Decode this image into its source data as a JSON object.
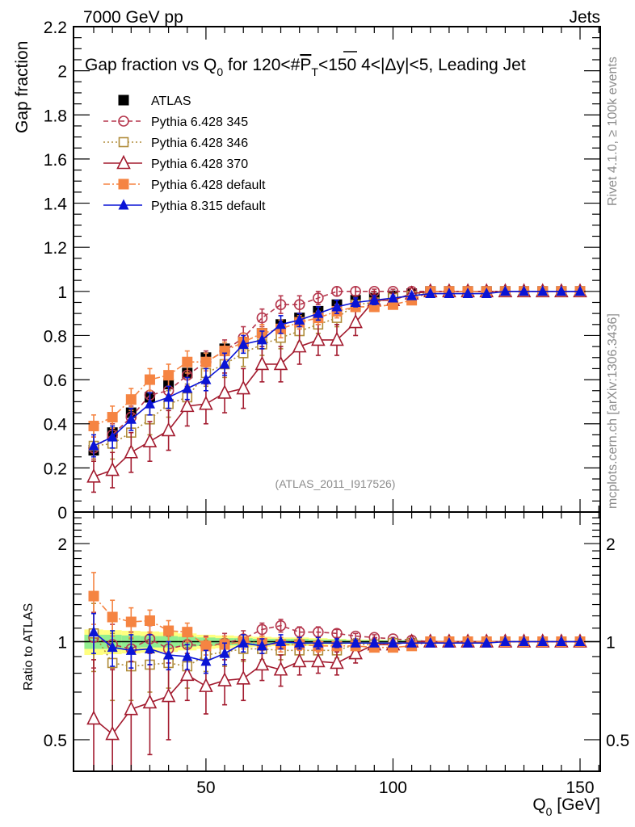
{
  "header": {
    "left_label": "7000 GeV pp",
    "right_label": "Jets",
    "side_label_top": "Rivet 4.1.0, ≥ 100k events",
    "side_label_bottom": "mcplots.cern.ch [arXiv:1306.3436]",
    "analysis_id": "(ATLAS_2011_I917526)"
  },
  "chart_data": [
    {
      "type": "line",
      "panel": "main",
      "title_parts": {
        "pre": "Gap fraction vs Q",
        "sub0": "0",
        "mid": " for 120<#",
        "pbar": "P",
        "subT": "T",
        "post": "<150  4<|Δy|<5, Leading Jet"
      },
      "xlabel": "Q",
      "xlabel_sub": "0",
      "xlabel_unit": " [GeV]",
      "ylabel": "Gap fraction",
      "xlim": [
        14.6,
        155.4
      ],
      "ylim": [
        0,
        2.2
      ],
      "yticks": [
        0,
        0.2,
        0.4,
        0.6,
        0.8,
        1,
        1.2,
        1.4,
        1.6,
        1.8,
        2,
        2.2
      ],
      "ytick_labels": [
        "0",
        "0.2",
        "0.4",
        "0.6",
        "0.8",
        "1",
        "1.2",
        "1.4",
        "1.6",
        "1.8",
        "2",
        "2.2"
      ],
      "xticks": [
        50,
        100,
        150
      ],
      "xtick_labels": [
        "50",
        "100",
        "150"
      ],
      "legend_position": "top-left",
      "x": [
        20,
        25,
        30,
        35,
        40,
        45,
        50,
        55,
        60,
        65,
        70,
        75,
        80,
        85,
        90,
        95,
        100,
        105,
        110,
        115,
        120,
        125,
        130,
        135,
        140,
        145,
        150
      ],
      "series": [
        {
          "name": "ATLAS",
          "color": "#000000",
          "marker": "filled-square",
          "line": "none",
          "values": [
            0.28,
            0.36,
            0.45,
            0.52,
            0.58,
            0.63,
            0.7,
            0.74,
            0.77,
            0.81,
            0.85,
            0.88,
            0.91,
            0.94,
            0.96,
            0.97,
            0.98,
            0.99,
            1,
            1,
            1,
            1,
            1,
            1,
            1,
            1,
            1
          ],
          "errors": [
            0.02,
            0.02,
            0.02,
            0.02,
            0.02,
            0.02,
            0.02,
            0.02,
            0.02,
            0.02,
            0.02,
            0.02,
            0.02,
            0.01,
            0.01,
            0.01,
            0.01,
            0.01,
            0,
            0,
            0,
            0,
            0,
            0,
            0,
            0,
            0
          ]
        },
        {
          "name": "Pythia 6.428 345",
          "color": "#b5374d",
          "marker": "open-circle",
          "line": "dashed",
          "values": [
            0.29,
            0.35,
            0.43,
            0.53,
            0.55,
            0.62,
            0.68,
            0.73,
            0.79,
            0.88,
            0.94,
            0.94,
            0.97,
            1.0,
            1.0,
            1.0,
            1.0,
            1.0,
            1,
            1,
            1,
            1,
            1,
            1,
            1,
            1,
            1
          ],
          "errors": [
            0.05,
            0.05,
            0.05,
            0.05,
            0.05,
            0.05,
            0.05,
            0.05,
            0.05,
            0.04,
            0.04,
            0.04,
            0.03,
            0.02,
            0.02,
            0.01,
            0.01,
            0.01,
            0,
            0,
            0,
            0,
            0,
            0,
            0,
            0,
            0
          ]
        },
        {
          "name": "Pythia 6.428 346",
          "color": "#b08c3a",
          "marker": "open-square",
          "line": "dotted",
          "values": [
            0.3,
            0.31,
            0.36,
            0.42,
            0.49,
            0.52,
            0.63,
            0.67,
            0.72,
            0.76,
            0.79,
            0.82,
            0.85,
            0.88,
            0.94,
            0.95,
            0.97,
            0.98,
            1,
            1,
            1,
            1,
            1,
            1,
            1,
            1,
            1
          ],
          "errors": [
            0.07,
            0.07,
            0.07,
            0.07,
            0.06,
            0.06,
            0.06,
            0.06,
            0.06,
            0.05,
            0.05,
            0.05,
            0.04,
            0.04,
            0.03,
            0.02,
            0.02,
            0.01,
            0,
            0,
            0,
            0,
            0,
            0,
            0,
            0,
            0
          ]
        },
        {
          "name": "Pythia 6.428 370",
          "color": "#a31b2f",
          "marker": "open-triangle",
          "line": "solid",
          "values": [
            0.16,
            0.19,
            0.27,
            0.32,
            0.37,
            0.48,
            0.49,
            0.54,
            0.56,
            0.67,
            0.67,
            0.75,
            0.78,
            0.78,
            0.86,
            0.96,
            0.96,
            0.99,
            1,
            1,
            1,
            1,
            1,
            1,
            1,
            1,
            1
          ],
          "errors": [
            0.07,
            0.08,
            0.09,
            0.09,
            0.09,
            0.09,
            0.09,
            0.09,
            0.09,
            0.08,
            0.08,
            0.08,
            0.07,
            0.07,
            0.06,
            0.04,
            0.03,
            0.02,
            0,
            0,
            0,
            0,
            0,
            0,
            0,
            0,
            0
          ]
        },
        {
          "name": "Pythia 6.428 default",
          "color": "#f58442",
          "marker": "filled-square",
          "line": "dash-dot",
          "values": [
            0.39,
            0.43,
            0.51,
            0.6,
            0.62,
            0.68,
            0.68,
            0.73,
            0.77,
            0.81,
            0.83,
            0.86,
            0.88,
            0.91,
            0.93,
            0.93,
            0.94,
            0.96,
            1,
            1,
            1,
            1,
            1,
            1,
            1,
            1,
            1
          ],
          "errors": [
            0.05,
            0.05,
            0.05,
            0.05,
            0.05,
            0.05,
            0.04,
            0.04,
            0.04,
            0.04,
            0.04,
            0.03,
            0.03,
            0.03,
            0.02,
            0.02,
            0.02,
            0.01,
            0,
            0,
            0,
            0,
            0,
            0,
            0,
            0,
            0
          ]
        },
        {
          "name": "Pythia 8.315 default",
          "color": "#0a14d6",
          "marker": "filled-triangle",
          "line": "solid",
          "values": [
            0.3,
            0.34,
            0.42,
            0.49,
            0.52,
            0.56,
            0.6,
            0.67,
            0.76,
            0.78,
            0.85,
            0.87,
            0.9,
            0.93,
            0.95,
            0.96,
            0.97,
            0.98,
            0.99,
            0.99,
            0.99,
            0.99,
            1,
            1,
            1,
            1,
            1
          ],
          "errors": [
            0.05,
            0.05,
            0.05,
            0.05,
            0.05,
            0.05,
            0.05,
            0.05,
            0.04,
            0.04,
            0.04,
            0.03,
            0.03,
            0.03,
            0.02,
            0.02,
            0.01,
            0.01,
            0,
            0,
            0,
            0,
            0,
            0,
            0,
            0,
            0
          ]
        }
      ]
    },
    {
      "type": "line",
      "panel": "ratio",
      "ylabel": "Ratio to ATLAS",
      "yscale": "log",
      "ylim": [
        0.4,
        2.5
      ],
      "yticks": [
        0.5,
        1,
        2
      ],
      "ytick_labels": [
        "0.5",
        "1",
        "2"
      ],
      "xlim": [
        14.6,
        155.4
      ],
      "xticks": [
        50,
        100,
        150
      ],
      "xtick_labels": [
        "50",
        "100",
        "150"
      ],
      "band_colors": {
        "inner": "#90ee90",
        "outer": "#ffff80"
      },
      "band_inner": [
        0.05,
        0.05,
        0.045,
        0.04,
        0.04,
        0.035,
        0.03,
        0.025,
        0.025,
        0.02,
        0.02,
        0.02,
        0.015,
        0.015,
        0.01,
        0.01,
        0.01,
        0.01,
        0,
        0,
        0,
        0,
        0,
        0,
        0,
        0,
        0
      ],
      "band_outer": [
        0.09,
        0.085,
        0.08,
        0.075,
        0.07,
        0.06,
        0.05,
        0.045,
        0.04,
        0.035,
        0.03,
        0.03,
        0.025,
        0.02,
        0.015,
        0.015,
        0.01,
        0.01,
        0,
        0,
        0,
        0,
        0,
        0,
        0,
        0,
        0
      ],
      "x": [
        20,
        25,
        30,
        35,
        40,
        45,
        50,
        55,
        60,
        65,
        70,
        75,
        80,
        85,
        90,
        95,
        100,
        105,
        110,
        115,
        120,
        125,
        130,
        135,
        140,
        145,
        150
      ],
      "series": [
        {
          "name": "Pythia 6.428 345",
          "color": "#b5374d",
          "marker": "open-circle",
          "line": "dashed",
          "values": [
            1.03,
            0.98,
            0.95,
            1.02,
            0.95,
            0.98,
            0.97,
            0.99,
            1.02,
            1.09,
            1.12,
            1.07,
            1.07,
            1.06,
            1.04,
            1.03,
            1.02,
            1.01,
            1,
            1,
            1,
            1,
            1,
            1,
            1,
            1,
            1
          ],
          "errors": [
            0.2,
            0.15,
            0.12,
            0.1,
            0.09,
            0.08,
            0.07,
            0.07,
            0.06,
            0.05,
            0.05,
            0.04,
            0.04,
            0.03,
            0.02,
            0.02,
            0.01,
            0.01,
            0,
            0,
            0,
            0,
            0,
            0,
            0,
            0,
            0
          ]
        },
        {
          "name": "Pythia 6.428 346",
          "color": "#b08c3a",
          "marker": "open-square",
          "line": "dotted",
          "values": [
            1.06,
            0.86,
            0.84,
            0.85,
            0.86,
            0.84,
            0.91,
            0.93,
            0.95,
            0.95,
            0.94,
            0.94,
            0.94,
            0.94,
            0.98,
            0.98,
            0.99,
            0.99,
            1,
            1,
            1,
            1,
            1,
            1,
            1,
            1,
            1
          ],
          "errors": [
            0.25,
            0.2,
            0.18,
            0.15,
            0.14,
            0.12,
            0.1,
            0.09,
            0.08,
            0.07,
            0.06,
            0.06,
            0.05,
            0.05,
            0.04,
            0.03,
            0.02,
            0.01,
            0,
            0,
            0,
            0,
            0,
            0,
            0,
            0,
            0
          ]
        },
        {
          "name": "Pythia 6.428 370",
          "color": "#a31b2f",
          "marker": "open-triangle",
          "line": "solid",
          "values": [
            0.58,
            0.52,
            0.62,
            0.65,
            0.68,
            0.79,
            0.73,
            0.76,
            0.77,
            0.85,
            0.82,
            0.87,
            0.87,
            0.86,
            0.92,
            0.98,
            0.98,
            1.0,
            1,
            1,
            1,
            1,
            1,
            1,
            1,
            1,
            1
          ],
          "errors": [
            0.3,
            0.3,
            0.25,
            0.2,
            0.18,
            0.13,
            0.13,
            0.12,
            0.11,
            0.09,
            0.09,
            0.08,
            0.07,
            0.07,
            0.06,
            0.04,
            0.03,
            0.02,
            0,
            0,
            0,
            0,
            0,
            0,
            0,
            0,
            0
          ]
        },
        {
          "name": "Pythia 6.428 default",
          "color": "#f58442",
          "marker": "filled-square",
          "line": "dash-dot",
          "values": [
            1.38,
            1.19,
            1.15,
            1.16,
            1.08,
            1.07,
            0.97,
            0.98,
            1.0,
            0.99,
            0.98,
            0.98,
            0.97,
            0.97,
            0.97,
            0.96,
            0.96,
            0.97,
            1,
            1,
            1,
            1,
            1,
            1,
            1,
            1,
            1
          ],
          "errors": [
            0.25,
            0.15,
            0.12,
            0.09,
            0.08,
            0.07,
            0.06,
            0.06,
            0.05,
            0.05,
            0.05,
            0.04,
            0.04,
            0.03,
            0.03,
            0.02,
            0.02,
            0.01,
            0,
            0,
            0,
            0,
            0,
            0,
            0,
            0,
            0
          ]
        },
        {
          "name": "Pythia 8.315 default",
          "color": "#0a14d6",
          "marker": "filled-triangle",
          "line": "solid",
          "values": [
            1.07,
            0.96,
            0.94,
            0.95,
            0.91,
            0.9,
            0.87,
            0.92,
            0.99,
            0.97,
            1.0,
            0.99,
            0.99,
            0.99,
            0.99,
            0.99,
            0.99,
            0.99,
            0.99,
            0.99,
            0.99,
            0.99,
            1,
            1,
            1,
            1,
            1
          ],
          "errors": [
            0.15,
            0.12,
            0.11,
            0.1,
            0.09,
            0.08,
            0.07,
            0.07,
            0.06,
            0.05,
            0.05,
            0.04,
            0.04,
            0.03,
            0.02,
            0.02,
            0.01,
            0.01,
            0,
            0,
            0,
            0,
            0,
            0,
            0,
            0,
            0
          ]
        }
      ]
    }
  ]
}
